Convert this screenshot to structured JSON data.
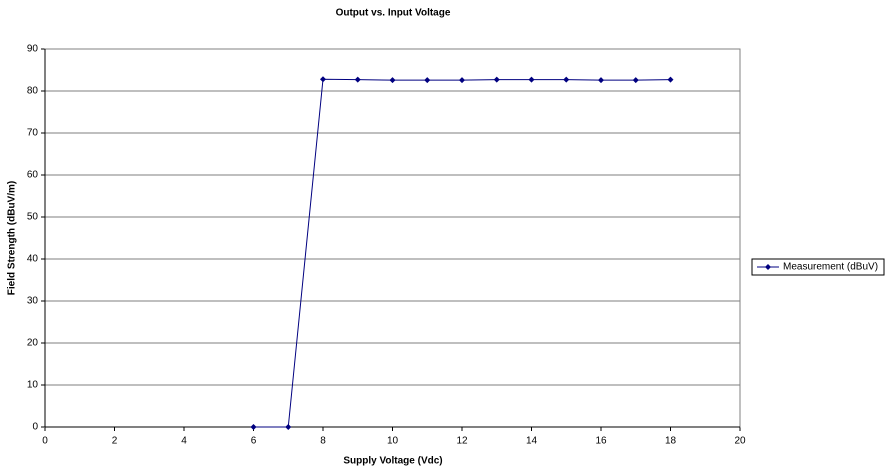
{
  "chart_data": {
    "type": "scatter-line",
    "title": "Output vs. Input Voltage",
    "x_label": "Supply Voltage (Vdc)",
    "y_label": "Field Strength (dBuV/m)",
    "x": [
      6,
      7,
      8,
      9,
      10,
      11,
      12,
      13,
      14,
      15,
      16,
      17,
      18
    ],
    "series": [
      {
        "name": "Measurement (dBuV)",
        "color": "#000080",
        "values": [
          0,
          0,
          82.8,
          82.7,
          82.6,
          82.6,
          82.6,
          82.7,
          82.7,
          82.7,
          82.6,
          82.6,
          82.7
        ]
      }
    ],
    "xlim": [
      0,
      20
    ],
    "xticks": [
      0,
      2,
      4,
      6,
      8,
      10,
      12,
      14,
      16,
      18,
      20
    ],
    "ylim": [
      0,
      90
    ],
    "yticks": [
      0,
      10,
      20,
      30,
      40,
      50,
      60,
      70,
      80,
      90
    ],
    "grid": true,
    "legend": "right"
  }
}
